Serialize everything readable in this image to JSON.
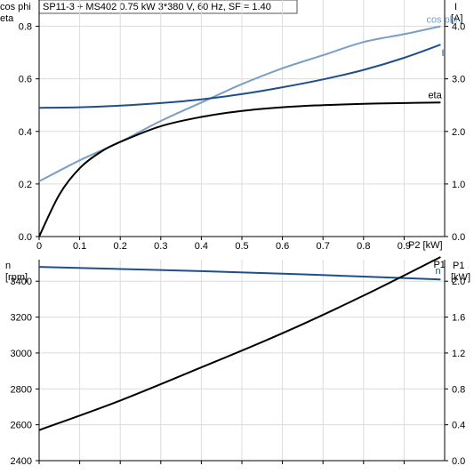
{
  "header": {
    "title": "SP11-3 + MS402   0.75 kW   3*380 V, 60 Hz, SF = 1.40"
  },
  "colors": {
    "cos_phi": "#7b9ec3",
    "current": "#1f4e8c",
    "eta": "#000000",
    "speed": "#1f4e8c",
    "p1": "#000000"
  },
  "chart_data": [
    {
      "type": "line",
      "xlabel": "P2 [kW]",
      "ylabel_left": [
        "cos phi",
        "eta"
      ],
      "ylabel_right": [
        "I",
        "[A]"
      ],
      "xlim": [
        0,
        1.0
      ],
      "ylim_left": [
        0,
        0.9
      ],
      "ylim_right": [
        0,
        4.5
      ],
      "x_ticks": [
        "0",
        "0.1",
        "0.2",
        "0.3",
        "0.4",
        "0.5",
        "0.6",
        "0.7",
        "0.8",
        "0.9"
      ],
      "y_ticks_left": [
        "0.0",
        "0.2",
        "0.4",
        "0.6",
        "0.8"
      ],
      "y_ticks_right": [
        "0.0",
        "1.0",
        "2.0",
        "3.0",
        "4.0"
      ],
      "grid": true,
      "series": [
        {
          "name": "cos phi",
          "axis": "left",
          "x": [
            0,
            0.1,
            0.2,
            0.3,
            0.4,
            0.5,
            0.6,
            0.7,
            0.8,
            0.9,
            0.99
          ],
          "y": [
            0.21,
            0.29,
            0.36,
            0.44,
            0.51,
            0.58,
            0.64,
            0.69,
            0.74,
            0.77,
            0.8
          ]
        },
        {
          "name": "I",
          "axis": "right",
          "x": [
            0,
            0.1,
            0.2,
            0.3,
            0.4,
            0.5,
            0.6,
            0.7,
            0.8,
            0.9,
            0.99
          ],
          "y": [
            2.45,
            2.46,
            2.49,
            2.54,
            2.61,
            2.71,
            2.84,
            2.99,
            3.17,
            3.4,
            3.65
          ]
        },
        {
          "name": "eta",
          "axis": "left",
          "x": [
            0,
            0.05,
            0.1,
            0.15,
            0.2,
            0.3,
            0.4,
            0.5,
            0.6,
            0.7,
            0.8,
            0.9,
            0.99
          ],
          "y": [
            0.0,
            0.16,
            0.26,
            0.32,
            0.36,
            0.42,
            0.455,
            0.478,
            0.492,
            0.5,
            0.505,
            0.508,
            0.51
          ]
        }
      ]
    },
    {
      "type": "line",
      "ylabel_left": [
        "n",
        "[rpm]"
      ],
      "ylabel_right": [
        "P1",
        "[kW]"
      ],
      "xlim": [
        0,
        1.0
      ],
      "ylim_left": [
        2400,
        3520
      ],
      "ylim_right": [
        0.0,
        2.24
      ],
      "y_ticks_left": [
        "2400",
        "2600",
        "2800",
        "3000",
        "3200",
        "3400"
      ],
      "y_ticks_right": [
        "0.0",
        "0.4",
        "0.8",
        "1.2",
        "1.6",
        "2.0"
      ],
      "grid": true,
      "series": [
        {
          "name": "n",
          "axis": "left",
          "x": [
            0,
            0.2,
            0.4,
            0.6,
            0.8,
            0.99
          ],
          "y": [
            3480,
            3468,
            3456,
            3442,
            3426,
            3410
          ]
        },
        {
          "name": "P1",
          "axis": "right",
          "x": [
            0,
            0.2,
            0.4,
            0.6,
            0.8,
            0.99
          ],
          "y": [
            0.34,
            0.67,
            1.04,
            1.42,
            1.84,
            2.27
          ]
        }
      ]
    }
  ]
}
